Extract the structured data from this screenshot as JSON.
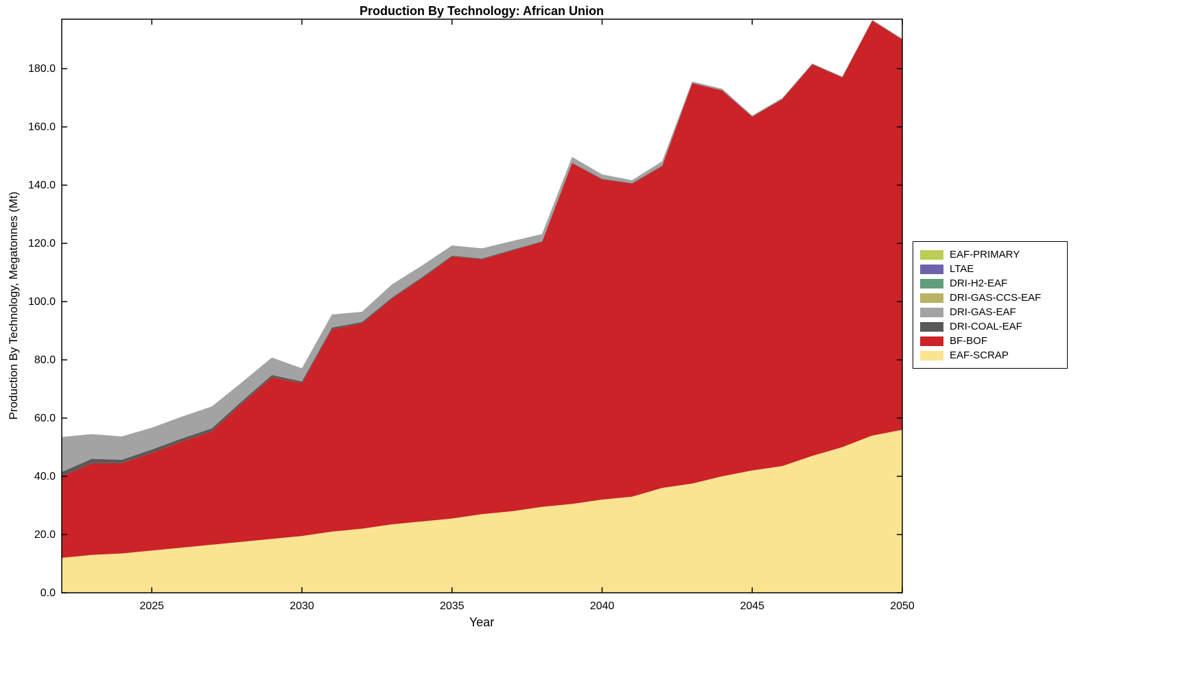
{
  "chart_data": {
    "type": "area",
    "stacked": true,
    "title": "Production By Technology: African Union",
    "xlabel": "Year",
    "ylabel": "Production By Technology, Megatonnes (Mt)",
    "xlim": [
      2022,
      2050
    ],
    "ylim": [
      0,
      197
    ],
    "grid": false,
    "xticks": [
      {
        "value": 2025,
        "label": "2025"
      },
      {
        "value": 2030,
        "label": "2030"
      },
      {
        "value": 2035,
        "label": "2035"
      },
      {
        "value": 2040,
        "label": "2040"
      },
      {
        "value": 2045,
        "label": "2045"
      },
      {
        "value": 2050,
        "label": "2050"
      }
    ],
    "yticks": [
      {
        "value": 0,
        "label": "0.0"
      },
      {
        "value": 20,
        "label": "20.0"
      },
      {
        "value": 40,
        "label": "40.0"
      },
      {
        "value": 60,
        "label": "60.0"
      },
      {
        "value": 80,
        "label": "80.0"
      },
      {
        "value": 100,
        "label": "100.0"
      },
      {
        "value": 120,
        "label": "120.0"
      },
      {
        "value": 140,
        "label": "140.0"
      },
      {
        "value": 160,
        "label": "160.0"
      },
      {
        "value": 180,
        "label": "180.0"
      }
    ],
    "x": [
      2022,
      2023,
      2024,
      2025,
      2026,
      2027,
      2028,
      2029,
      2030,
      2031,
      2032,
      2033,
      2034,
      2035,
      2036,
      2037,
      2038,
      2039,
      2040,
      2041,
      2042,
      2043,
      2044,
      2045,
      2046,
      2047,
      2048,
      2049,
      2050
    ],
    "series": [
      {
        "name": "EAF-SCRAP",
        "color": "#fbe491",
        "values": [
          12,
          13,
          13.5,
          14.5,
          15.5,
          16.5,
          17.5,
          18.5,
          19.5,
          21,
          22,
          23.5,
          24.5,
          25.5,
          27,
          28,
          29.5,
          30.5,
          32,
          33,
          36,
          37.5,
          40,
          42,
          43.5,
          47,
          50,
          54,
          56
        ]
      },
      {
        "name": "BF-BOF",
        "color": "#cb2327",
        "values": [
          28,
          31.5,
          31,
          33.5,
          36.5,
          39,
          47.5,
          55.5,
          52.5,
          69.5,
          70.5,
          77.5,
          83.5,
          90,
          87.5,
          89.5,
          91,
          117,
          110,
          107.5,
          110.5,
          137.5,
          132.5,
          121.5,
          126,
          134.5,
          127,
          142.5,
          134
        ]
      },
      {
        "name": "DRI-COAL-EAF",
        "color": "#595959",
        "values": [
          1.5,
          1.5,
          1.2,
          1.2,
          1.0,
          1.0,
          0.8,
          0.8,
          0.6,
          0.6,
          0.5,
          0.4,
          0.4,
          0.3,
          0.3,
          0.3,
          0.2,
          0.2,
          0.2,
          0.2,
          0.2,
          0.1,
          0.1,
          0.1,
          0.1,
          0.1,
          0.1,
          0.1,
          0.1
        ]
      },
      {
        "name": "DRI-GAS-EAF",
        "color": "#a3a3a3",
        "values": [
          12,
          8.5,
          8,
          7.5,
          7.5,
          7.5,
          6.5,
          6,
          4.5,
          4.5,
          3.5,
          4.5,
          4,
          3.5,
          3.5,
          3,
          2.5,
          2,
          1.5,
          1,
          1.5,
          0.5,
          0.5,
          0.3,
          0.3,
          0.2,
          0.2,
          0.2,
          0.2
        ]
      },
      {
        "name": "DRI-GAS-CCS-EAF",
        "color": "#b8b466",
        "values": [
          0,
          0,
          0,
          0,
          0,
          0,
          0,
          0,
          0,
          0,
          0,
          0,
          0,
          0,
          0,
          0,
          0,
          0,
          0,
          0,
          0,
          0,
          0,
          0,
          0,
          0,
          0,
          0,
          0
        ]
      },
      {
        "name": "DRI-H2-EAF",
        "color": "#5f9e79",
        "values": [
          0,
          0,
          0,
          0,
          0,
          0,
          0,
          0,
          0,
          0,
          0,
          0,
          0,
          0,
          0,
          0,
          0,
          0,
          0,
          0,
          0,
          0,
          0,
          0,
          0,
          0,
          0,
          0,
          0
        ]
      },
      {
        "name": "LTAE",
        "color": "#6c61ae",
        "values": [
          0,
          0,
          0,
          0,
          0,
          0,
          0,
          0,
          0,
          0,
          0,
          0,
          0,
          0,
          0,
          0,
          0,
          0,
          0,
          0,
          0,
          0,
          0,
          0,
          0,
          0,
          0,
          0,
          0
        ]
      },
      {
        "name": "EAF-PRIMARY",
        "color": "#bccd55",
        "values": [
          0,
          0,
          0,
          0,
          0,
          0,
          0,
          0,
          0,
          0,
          0,
          0,
          0,
          0,
          0,
          0,
          0,
          0,
          0,
          0,
          0,
          0,
          0,
          0,
          0,
          0,
          0,
          0,
          0
        ]
      }
    ],
    "legend": {
      "position": "right-outside",
      "items": [
        "EAF-PRIMARY",
        "LTAE",
        "DRI-H2-EAF",
        "DRI-GAS-CCS-EAF",
        "DRI-GAS-EAF",
        "DRI-COAL-EAF",
        "BF-BOF",
        "EAF-SCRAP"
      ]
    }
  }
}
